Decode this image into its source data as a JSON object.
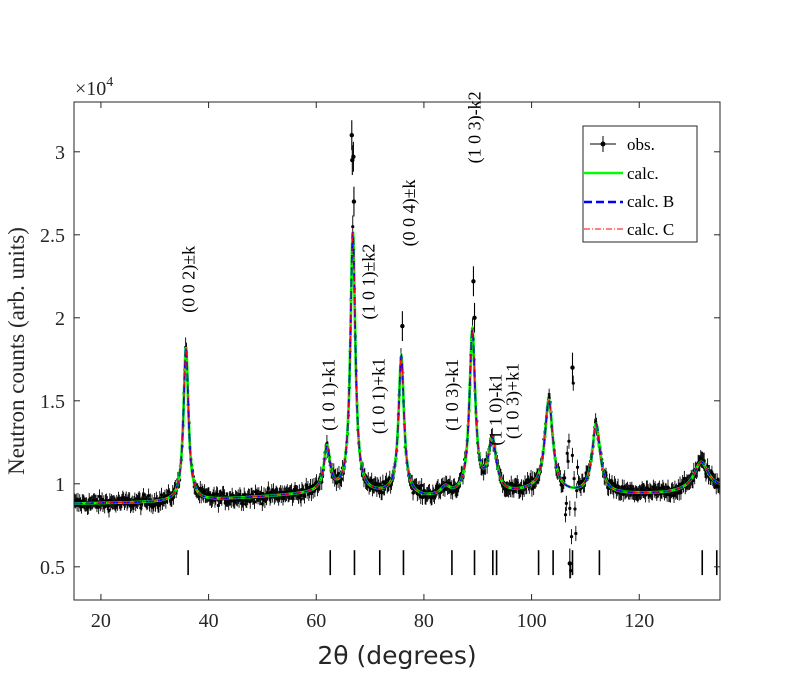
{
  "chart_data": {
    "type": "line",
    "xlabel": "2θ (degrees)",
    "ylabel": "Neutron counts (arb. units)",
    "y_exponent_label": "×10",
    "y_exponent_power": "4",
    "xlim": [
      15,
      135
    ],
    "ylim": [
      0.3,
      3.3
    ],
    "xticks": [
      20,
      40,
      60,
      80,
      100,
      120
    ],
    "yticks": [
      0.5,
      1,
      1.5,
      2,
      2.5,
      3
    ],
    "ytick_labels": [
      "0.5",
      "1",
      "1.5",
      "2",
      "2.5",
      "3"
    ],
    "grid": false,
    "legend_position": "top-right",
    "baseline": [
      [
        15,
        0.88
      ],
      [
        35,
        0.89
      ],
      [
        40,
        0.9
      ],
      [
        60,
        0.94
      ],
      [
        75,
        0.93
      ],
      [
        80,
        0.91
      ],
      [
        95,
        0.93
      ],
      [
        100,
        0.95
      ],
      [
        110,
        0.93
      ],
      [
        125,
        0.94
      ],
      [
        135,
        0.97
      ]
    ],
    "peaks": [
      {
        "x": 35.8,
        "height": 0.93,
        "width": 0.55
      },
      {
        "x": 62.0,
        "height": 0.27,
        "width": 0.7
      },
      {
        "x": 66.8,
        "height": 1.57,
        "width": 0.55
      },
      {
        "x": 75.8,
        "height": 0.83,
        "width": 0.6
      },
      {
        "x": 84.0,
        "height": 0.05,
        "width": 1.0
      },
      {
        "x": 89.0,
        "height": 0.98,
        "width": 0.65
      },
      {
        "x": 92.7,
        "height": 0.32,
        "width": 0.9
      },
      {
        "x": 103.2,
        "height": 0.55,
        "width": 0.9
      },
      {
        "x": 112.0,
        "height": 0.42,
        "width": 0.9
      },
      {
        "x": 131.5,
        "height": 0.17,
        "width": 1.6
      }
    ],
    "anomaly": {
      "x": 107.5,
      "amplitude": 0.55
    },
    "series": [
      {
        "name": "obs.",
        "color": "#000000",
        "style": "points-with-errorbars"
      },
      {
        "name": "calc.",
        "color": "#00ff00",
        "style": "solid"
      },
      {
        "name": "calc. B",
        "color": "#0000ff",
        "style": "dashed"
      },
      {
        "name": "calc. C",
        "color": "#ff0000",
        "style": "dash-dot"
      }
    ],
    "obs_extra_points": [
      {
        "x": 66.6,
        "y": 3.1
      },
      {
        "x": 66.7,
        "y": 2.95
      },
      {
        "x": 66.9,
        "y": 2.97
      },
      {
        "x": 67.0,
        "y": 2.7
      },
      {
        "x": 76.0,
        "y": 1.95
      },
      {
        "x": 89.2,
        "y": 2.22
      },
      {
        "x": 89.4,
        "y": 2.0
      },
      {
        "x": 107.6,
        "y": 1.7
      },
      {
        "x": 107.1,
        "y": 0.52
      }
    ],
    "reflection_ticks": [
      36.2,
      62.6,
      67.1,
      71.8,
      76.2,
      85.2,
      89.4,
      92.8,
      93.5,
      101.3,
      104.0,
      107.6,
      112.6,
      131.7,
      134.4
    ],
    "reflection_tick_y": [
      0.45,
      0.6
    ],
    "annotations": [
      {
        "text": "(0 0 2)±k",
        "x": 36.3,
        "y": 2.03
      },
      {
        "text": "(1 0 1)-k1",
        "x": 62.3,
        "y": 1.32
      },
      {
        "text": "(1 0 1)±k2",
        "x": 69.7,
        "y": 1.99
      },
      {
        "text": "(1 0 1)+k1",
        "x": 71.6,
        "y": 1.3
      },
      {
        "text": "(0 0 4)±k",
        "x": 77.2,
        "y": 2.43
      },
      {
        "text": "(1 0 3)-k1",
        "x": 85.2,
        "y": 1.32
      },
      {
        "text": "(1 0 3)-k2",
        "x": 89.4,
        "y": 2.93
      },
      {
        "text": "(1 1 0)-k1",
        "x": 93.3,
        "y": 1.23
      },
      {
        "text": "(1 0 3)+k1",
        "x": 96.5,
        "y": 1.27
      }
    ]
  }
}
